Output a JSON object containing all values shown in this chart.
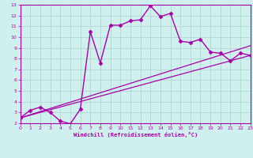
{
  "xlabel": "Windchill (Refroidissement éolien,°C)",
  "xlim": [
    0,
    23
  ],
  "ylim": [
    2,
    13
  ],
  "xticks": [
    0,
    1,
    2,
    3,
    4,
    5,
    6,
    7,
    8,
    9,
    10,
    11,
    12,
    13,
    14,
    15,
    16,
    17,
    18,
    19,
    20,
    21,
    22,
    23
  ],
  "yticks": [
    2,
    3,
    4,
    5,
    6,
    7,
    8,
    9,
    10,
    11,
    12,
    13
  ],
  "bg_color": "#cff0ee",
  "line_color": "#aa00aa",
  "grid_color": "#b0d8d0",
  "line1_x": [
    0,
    23
  ],
  "line1_y": [
    2.5,
    8.3
  ],
  "line2_x": [
    0,
    23
  ],
  "line2_y": [
    2.5,
    9.2
  ],
  "curve_x": [
    0,
    1,
    2,
    3,
    4,
    5,
    6,
    7,
    8,
    9,
    10,
    11,
    12,
    13,
    14,
    15,
    16,
    17,
    18,
    19,
    20,
    21,
    22,
    23
  ],
  "curve_y": [
    2.5,
    3.2,
    3.5,
    3.0,
    2.2,
    1.95,
    3.3,
    10.5,
    7.6,
    11.1,
    11.1,
    11.5,
    11.6,
    12.9,
    11.9,
    12.2,
    9.6,
    9.5,
    9.8,
    8.6,
    8.5,
    7.8,
    8.5,
    8.3
  ]
}
